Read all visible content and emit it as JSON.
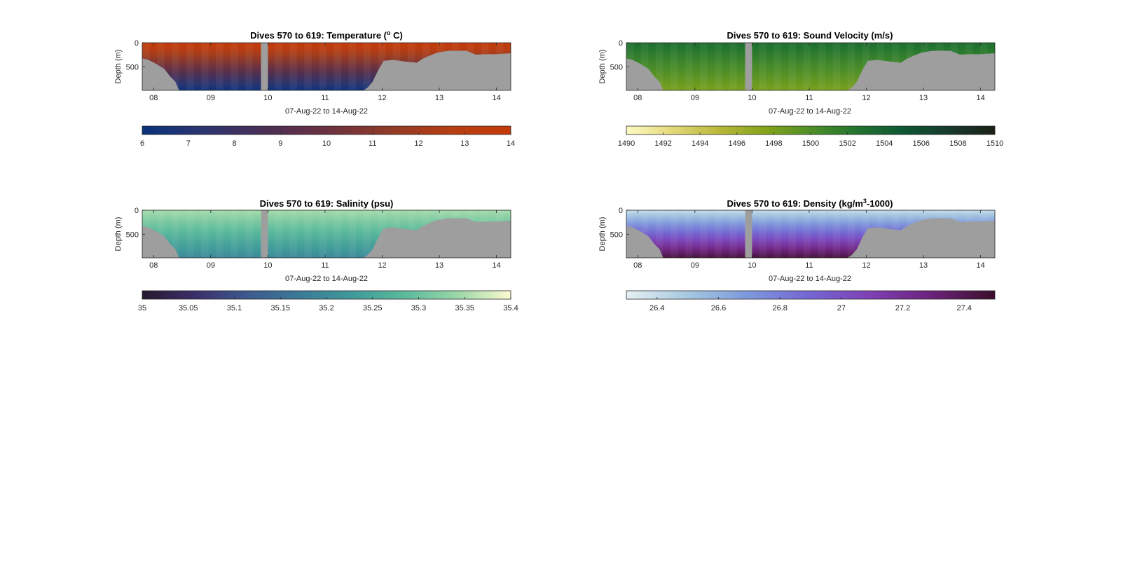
{
  "chart_data": [
    {
      "type": "heatmap",
      "id": "temperature",
      "title_main": "Dives 570 to 619: Temperature (",
      "title_sup": "o",
      "title_end": " C)",
      "xlabel": "07-Aug-22 to 14-Aug-22",
      "ylabel": "Depth (m)",
      "xticks": [
        "08",
        "09",
        "10",
        "11",
        "12",
        "13",
        "14"
      ],
      "xtick_positions": [
        8,
        9,
        10,
        11,
        12,
        13,
        14
      ],
      "xlim": [
        7.8,
        14.25
      ],
      "yticks": [
        0,
        500
      ],
      "ylim": [
        0,
        990
      ],
      "y_reversed": true,
      "gap_days": [
        9.88,
        10.0
      ],
      "surface_value": 14,
      "deep_value": 6.2,
      "colorbar": {
        "ticks": [
          "6",
          "7",
          "8",
          "9",
          "10",
          "11",
          "12",
          "13",
          "14"
        ],
        "tick_values": [
          6,
          7,
          8,
          9,
          10,
          11,
          12,
          13,
          14
        ],
        "range": [
          6,
          14
        ],
        "colors": [
          "#08327a",
          "#2c3570",
          "#4a2e55",
          "#6b3140",
          "#8f3a28",
          "#b53e12",
          "#c43a0a"
        ]
      }
    },
    {
      "type": "heatmap",
      "id": "sound-velocity",
      "title_main": "Dives 570 to 619: Sound Velocity (m/s)",
      "title_sup": "",
      "title_end": "",
      "xlabel": "07-Aug-22 to 14-Aug-22",
      "ylabel": "Depth (m)",
      "xticks": [
        "08",
        "09",
        "10",
        "11",
        "12",
        "13",
        "14"
      ],
      "xtick_positions": [
        8,
        9,
        10,
        11,
        12,
        13,
        14
      ],
      "xlim": [
        7.8,
        14.25
      ],
      "yticks": [
        0,
        500
      ],
      "ylim": [
        0,
        990
      ],
      "y_reversed": true,
      "gap_days": [
        9.88,
        10.0
      ],
      "surface_value": 1503,
      "deep_value": 1498,
      "colorbar": {
        "ticks": [
          "1490",
          "1492",
          "1494",
          "1496",
          "1498",
          "1500",
          "1502",
          "1504",
          "1506",
          "1508",
          "1510"
        ],
        "tick_values": [
          1490,
          1492,
          1494,
          1496,
          1498,
          1500,
          1502,
          1504,
          1506,
          1508,
          1510
        ],
        "range": [
          1490,
          1510
        ],
        "colors": [
          "#fdfbc4",
          "#e4d87a",
          "#b9b83a",
          "#84a41a",
          "#4f8f28",
          "#22742f",
          "#0e5734",
          "#163a2b",
          "#1b2017"
        ]
      }
    },
    {
      "type": "heatmap",
      "id": "salinity",
      "title_main": "Dives 570 to 619: Salinity (psu)",
      "title_sup": "",
      "title_end": "",
      "xlabel": "07-Aug-22 to 14-Aug-22",
      "ylabel": "Depth (m)",
      "xticks": [
        "08",
        "09",
        "10",
        "11",
        "12",
        "13",
        "14"
      ],
      "xtick_positions": [
        8,
        9,
        10,
        11,
        12,
        13,
        14
      ],
      "xlim": [
        7.8,
        14.25
      ],
      "yticks": [
        0,
        500
      ],
      "ylim": [
        0,
        990
      ],
      "y_reversed": true,
      "gap_days": [
        9.88,
        10.0
      ],
      "surface_value": 35.35,
      "deep_value": 35.2,
      "colorbar": {
        "ticks": [
          "35",
          "35.05",
          "35.1",
          "35.15",
          "35.2",
          "35.25",
          "35.3",
          "35.35",
          "35.4"
        ],
        "tick_values": [
          35,
          35.05,
          35.1,
          35.15,
          35.2,
          35.25,
          35.3,
          35.35,
          35.4
        ],
        "range": [
          35,
          35.4
        ],
        "colors": [
          "#27182e",
          "#3c2f6b",
          "#3d5a8e",
          "#3b7a97",
          "#409a9a",
          "#5cbb9c",
          "#9bd7a8",
          "#fdfbd0"
        ]
      }
    },
    {
      "type": "heatmap",
      "id": "density",
      "title_main": "Dives 570 to 619: Density (kg/m",
      "title_sup": "3",
      "title_end": "-1000)",
      "xlabel": "07-Aug-22 to 14-Aug-22",
      "ylabel": "Depth (m)",
      "xticks": [
        "08",
        "09",
        "10",
        "11",
        "12",
        "13",
        "14"
      ],
      "xtick_positions": [
        8,
        9,
        10,
        11,
        12,
        13,
        14
      ],
      "xlim": [
        7.8,
        14.25
      ],
      "yticks": [
        0,
        500
      ],
      "ylim": [
        0,
        990
      ],
      "y_reversed": true,
      "gap_days": [
        9.88,
        10.0
      ],
      "surface_value": 26.4,
      "deep_value": 27.45,
      "colorbar": {
        "ticks": [
          "26.4",
          "26.6",
          "26.8",
          "27",
          "27.2",
          "27.4"
        ],
        "tick_values": [
          26.4,
          26.6,
          26.8,
          27,
          27.2,
          27.4
        ],
        "range": [
          26.3,
          27.5
        ],
        "colors": [
          "#e6f0f2",
          "#a6c8e0",
          "#7d97dc",
          "#7466d2",
          "#7f3fb3",
          "#6a2178",
          "#3a0f2a"
        ]
      }
    }
  ]
}
